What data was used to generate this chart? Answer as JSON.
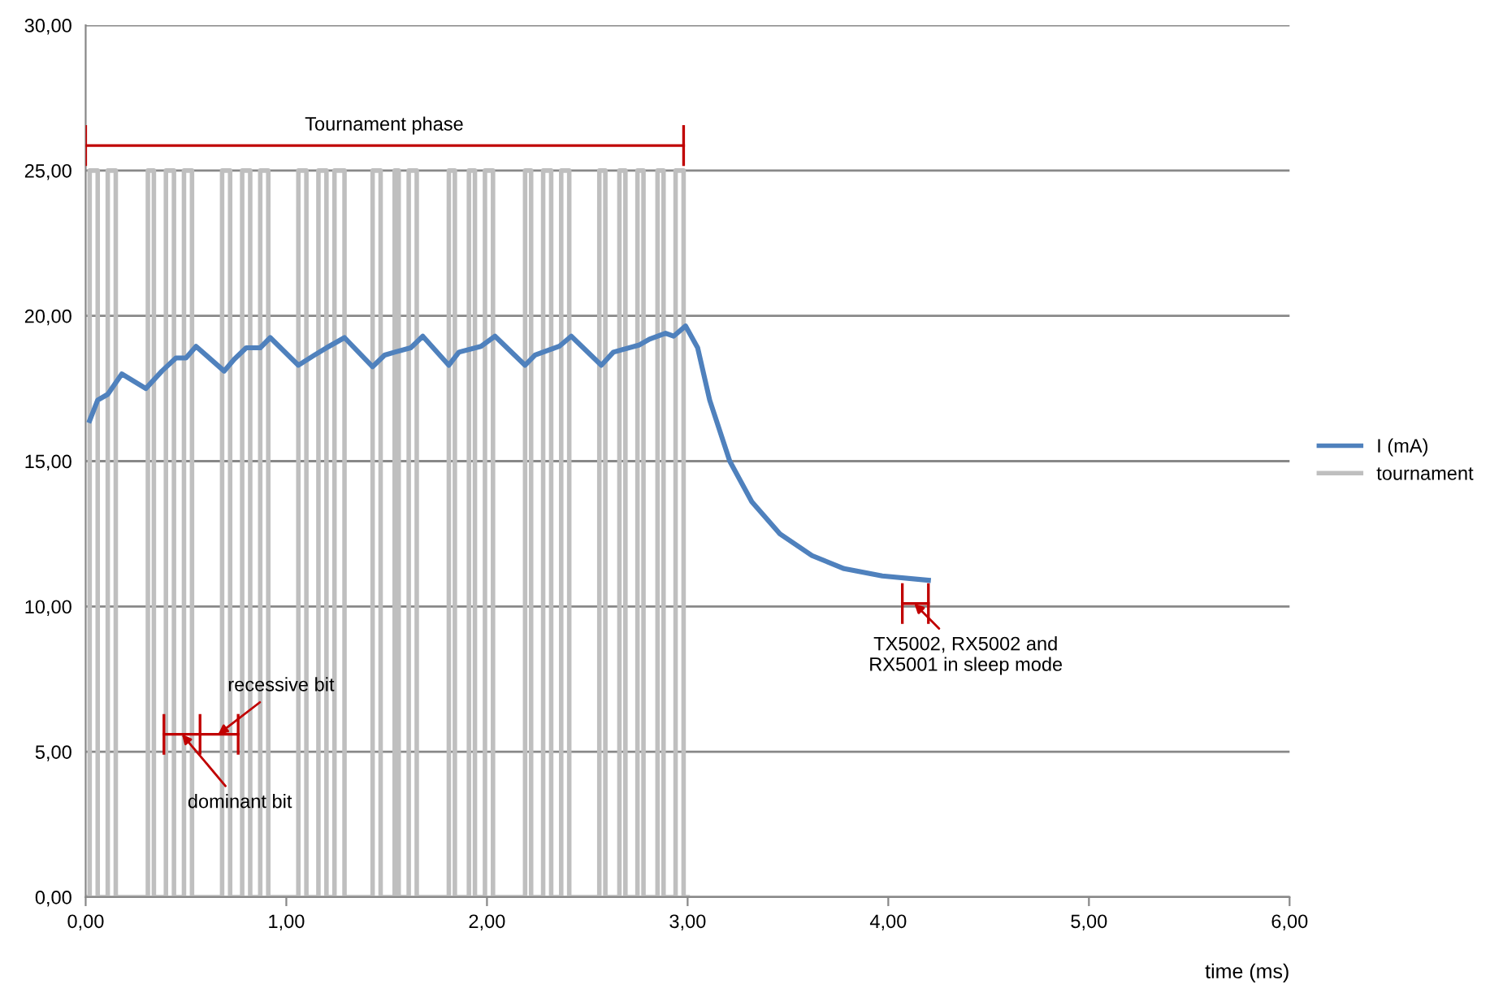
{
  "chart_data": {
    "type": "line",
    "xlabel": "time (ms)",
    "series": [
      {
        "name": "tournament",
        "color": "#bfbfbf",
        "type": "step",
        "x": [
          0,
          0.02,
          0.06,
          0.11,
          0.15,
          0.31,
          0.34,
          0.4,
          0.44,
          0.49,
          0.53,
          0.68,
          0.72,
          0.78,
          0.82,
          0.87,
          0.91,
          1.06,
          1.1,
          1.16,
          1.2,
          1.24,
          1.29,
          1.43,
          1.47,
          1.54,
          1.56,
          1.61,
          1.65,
          1.81,
          1.84,
          1.91,
          1.94,
          1.99,
          2.03,
          2.19,
          2.22,
          2.28,
          2.32,
          2.37,
          2.41,
          2.56,
          2.59,
          2.66,
          2.69,
          2.75,
          2.78,
          2.85,
          2.88,
          2.94,
          2.98,
          3.0
        ],
        "values": [
          0,
          25,
          0,
          25,
          0,
          25,
          0,
          25,
          0,
          25,
          0,
          25,
          0,
          25,
          0,
          25,
          0,
          25,
          0,
          25,
          0,
          25,
          0,
          25,
          0,
          25,
          0,
          25,
          0,
          25,
          0,
          25,
          0,
          25,
          0,
          25,
          0,
          25,
          0,
          25,
          0,
          25,
          0,
          25,
          0,
          25,
          0,
          25,
          0,
          25,
          0,
          0
        ]
      },
      {
        "color": "#c00000",
        "x": [
          0,
          2.98
        ],
        "values": [
          25.86,
          25.86
        ],
        "errors": [
          0.7,
          0.7
        ]
      },
      {
        "color": "#c00000",
        "x": [
          0.39,
          0.57,
          0.76
        ],
        "values": [
          5.6,
          5.6,
          5.6
        ],
        "errors": [
          0.7,
          0.7,
          0.7
        ]
      },
      {
        "color": "#c00000",
        "x": [
          4.07,
          4.2
        ],
        "values": [
          10.1,
          10.1
        ],
        "errors": [
          0.7,
          0.7
        ]
      },
      {
        "name": "I (mA)",
        "color": "#4f81bd",
        "x": [
          0.02,
          0.06,
          0.11,
          0.18,
          0.3,
          0.38,
          0.45,
          0.5,
          0.55,
          0.69,
          0.74,
          0.8,
          0.87,
          0.92,
          1.06,
          1.14,
          1.2,
          1.29,
          1.43,
          1.49,
          1.54,
          1.62,
          1.68,
          1.81,
          1.86,
          1.97,
          2.04,
          2.19,
          2.24,
          2.36,
          2.42,
          2.57,
          2.63,
          2.76,
          2.81,
          2.89,
          2.93,
          2.99,
          3.05,
          3.11,
          3.21,
          3.32,
          3.46,
          3.62,
          3.78,
          3.97,
          4.2
        ],
        "values": [
          16.4,
          17.1,
          17.3,
          18.0,
          17.5,
          18.1,
          18.55,
          18.55,
          18.95,
          18.1,
          18.5,
          18.9,
          18.9,
          19.25,
          18.3,
          18.65,
          18.9,
          19.25,
          18.25,
          18.65,
          18.75,
          18.9,
          19.3,
          18.3,
          18.75,
          18.95,
          19.3,
          18.3,
          18.65,
          18.95,
          19.3,
          18.3,
          18.75,
          19.0,
          19.2,
          19.4,
          19.3,
          19.65,
          18.9,
          17.1,
          15.0,
          13.6,
          12.5,
          11.75,
          11.3,
          11.05,
          10.9
        ]
      }
    ],
    "xlim": [
      0,
      6
    ],
    "ylim": [
      0,
      30
    ],
    "xticks": [
      {
        "value": 0,
        "label": "0,00"
      },
      {
        "value": 1,
        "label": "1,00"
      },
      {
        "value": 2,
        "label": "2,00"
      },
      {
        "value": 3,
        "label": "3,00"
      },
      {
        "value": 4,
        "label": "4,00"
      },
      {
        "value": 5,
        "label": "5,00"
      },
      {
        "value": 6,
        "label": "6,00"
      }
    ],
    "yticks": [
      {
        "value": 0,
        "label": "0,00"
      },
      {
        "value": 5,
        "label": "5,00"
      },
      {
        "value": 10,
        "label": "10,00"
      },
      {
        "value": 15,
        "label": "15,00"
      },
      {
        "value": 20,
        "label": "20,00"
      },
      {
        "value": 25,
        "label": "25,00"
      },
      {
        "value": 30,
        "label": "30,00"
      }
    ],
    "annotations": [
      "Tournament phase",
      {
        "text": "dominant bit",
        "x": 0.48,
        "y": 5.6
      },
      {
        "text": "recessive bit",
        "x": 0.66,
        "y": 5.6
      },
      {
        "text": "TX5002, RX5002 and\nRX5001 in sleep mode",
        "x": 4.13,
        "y": 10.1
      }
    ],
    "grid": "y",
    "legend": "right"
  }
}
